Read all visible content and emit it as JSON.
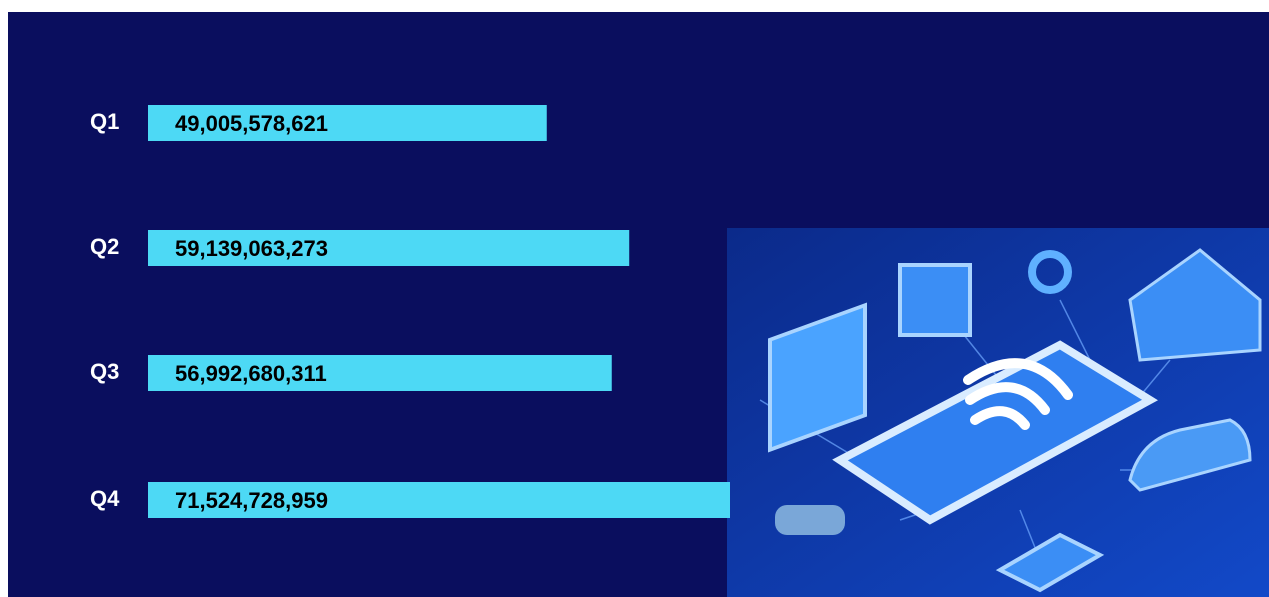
{
  "chart_data": {
    "type": "bar",
    "orientation": "horizontal",
    "categories": [
      "Q1",
      "Q2",
      "Q3",
      "Q4"
    ],
    "values": [
      49005578621,
      59139063273,
      56992680311,
      71524728959
    ],
    "value_labels": [
      "49,005,578,621",
      "59,139,063,273",
      "56,992,680,311",
      "71,524,728,959"
    ],
    "color": "#4dd9f5"
  }
}
